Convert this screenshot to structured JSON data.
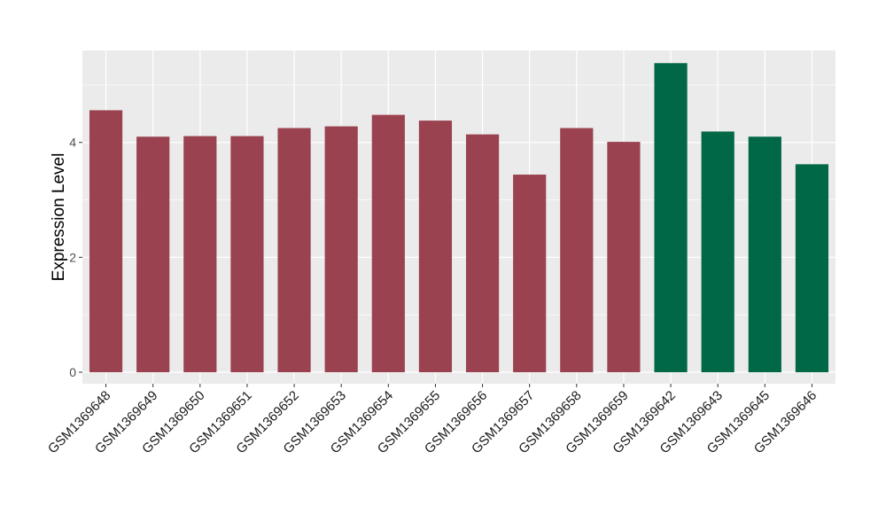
{
  "chart_data": {
    "type": "bar",
    "title": "",
    "xlabel": "",
    "ylabel": "Expression Level",
    "ylim": [
      -0.2,
      5.6
    ],
    "yticks": [
      0,
      2,
      4
    ],
    "grid": true,
    "legend": "none",
    "categories": [
      "GSM1369648",
      "GSM1369649",
      "GSM1369650",
      "GSM1369651",
      "GSM1369652",
      "GSM1369653",
      "GSM1369654",
      "GSM1369655",
      "GSM1369656",
      "GSM1369657",
      "GSM1369658",
      "GSM1369659",
      "GSM1369642",
      "GSM1369643",
      "GSM1369645",
      "GSM1369646"
    ],
    "values": [
      4.56,
      4.1,
      4.11,
      4.11,
      4.25,
      4.28,
      4.48,
      4.38,
      4.14,
      3.44,
      4.25,
      4.01,
      5.38,
      4.19,
      4.1,
      3.62
    ],
    "bar_colors": [
      "#9b4250",
      "#9b4250",
      "#9b4250",
      "#9b4250",
      "#9b4250",
      "#9b4250",
      "#9b4250",
      "#9b4250",
      "#9b4250",
      "#9b4250",
      "#9b4250",
      "#9b4250",
      "#006846",
      "#006846",
      "#006846",
      "#006846"
    ],
    "panel_background": "#ebebeb",
    "grid_color": "#ffffff"
  }
}
